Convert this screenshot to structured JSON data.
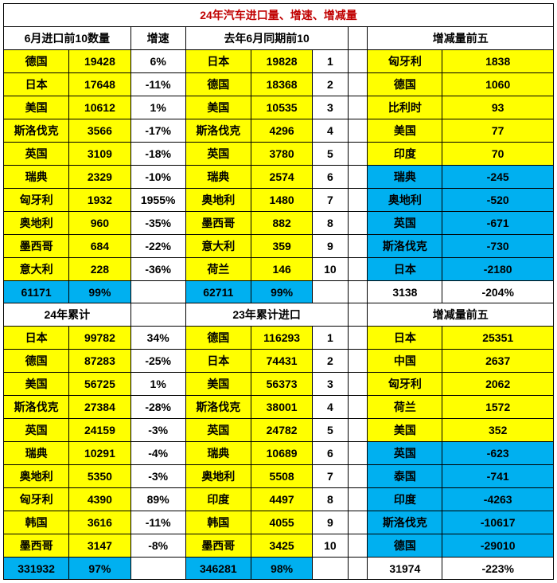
{
  "title": "24年汽车进口量、增速、增减量",
  "section1": {
    "header_left": "6月进口前10数量",
    "header_mid": "增速",
    "header_center": "去年6月同期前10",
    "header_right": "增减量前五",
    "left_rows": [
      {
        "country": "德国",
        "value": "19428",
        "rate": "6%"
      },
      {
        "country": "日本",
        "value": "17648",
        "rate": "-11%"
      },
      {
        "country": "美国",
        "value": "10612",
        "rate": "1%"
      },
      {
        "country": "斯洛伐克",
        "value": "3566",
        "rate": "-17%"
      },
      {
        "country": "英国",
        "value": "3109",
        "rate": "-18%"
      },
      {
        "country": "瑞典",
        "value": "2329",
        "rate": "-10%"
      },
      {
        "country": "匈牙利",
        "value": "1932",
        "rate": "1955%"
      },
      {
        "country": "奥地利",
        "value": "960",
        "rate": "-35%"
      },
      {
        "country": "墨西哥",
        "value": "684",
        "rate": "-22%"
      },
      {
        "country": "意大利",
        "value": "228",
        "rate": "-36%"
      }
    ],
    "center_rows": [
      {
        "country": "日本",
        "value": "19828",
        "rank": "1"
      },
      {
        "country": "德国",
        "value": "18368",
        "rank": "2"
      },
      {
        "country": "美国",
        "value": "10535",
        "rank": "3"
      },
      {
        "country": "斯洛伐克",
        "value": "4296",
        "rank": "4"
      },
      {
        "country": "英国",
        "value": "3780",
        "rank": "5"
      },
      {
        "country": "瑞典",
        "value": "2574",
        "rank": "6"
      },
      {
        "country": "奥地利",
        "value": "1480",
        "rank": "7"
      },
      {
        "country": "墨西哥",
        "value": "882",
        "rank": "8"
      },
      {
        "country": "意大利",
        "value": "359",
        "rank": "9"
      },
      {
        "country": "荷兰",
        "value": "146",
        "rank": "10"
      }
    ],
    "right_rows": [
      {
        "country": "匈牙利",
        "value": "1838",
        "neg": false
      },
      {
        "country": "德国",
        "value": "1060",
        "neg": false
      },
      {
        "country": "比利时",
        "value": "93",
        "neg": false
      },
      {
        "country": "美国",
        "value": "77",
        "neg": false
      },
      {
        "country": "印度",
        "value": "70",
        "neg": false
      },
      {
        "country": "瑞典",
        "value": "-245",
        "neg": true
      },
      {
        "country": "奥地利",
        "value": "-520",
        "neg": true
      },
      {
        "country": "英国",
        "value": "-671",
        "neg": true
      },
      {
        "country": "斯洛伐克",
        "value": "-730",
        "neg": true
      },
      {
        "country": "日本",
        "value": "-2180",
        "neg": true
      }
    ],
    "total": {
      "left_sum": "61171",
      "left_pct": "99%",
      "center_sum": "62711",
      "center_pct": "99%",
      "right_a": "3138",
      "right_b": "-204%"
    }
  },
  "section2": {
    "header_left": "24年累计",
    "header_center": "23年累计进口",
    "header_right": "增减量前五",
    "left_rows": [
      {
        "country": "日本",
        "value": "99782",
        "rate": "34%"
      },
      {
        "country": "德国",
        "value": "87283",
        "rate": "-25%"
      },
      {
        "country": "美国",
        "value": "56725",
        "rate": "1%"
      },
      {
        "country": "斯洛伐克",
        "value": "27384",
        "rate": "-28%"
      },
      {
        "country": "英国",
        "value": "24159",
        "rate": "-3%"
      },
      {
        "country": "瑞典",
        "value": "10291",
        "rate": "-4%"
      },
      {
        "country": "奥地利",
        "value": "5350",
        "rate": "-3%"
      },
      {
        "country": "匈牙利",
        "value": "4390",
        "rate": "89%"
      },
      {
        "country": "韩国",
        "value": "3616",
        "rate": "-11%"
      },
      {
        "country": "墨西哥",
        "value": "3147",
        "rate": "-8%"
      }
    ],
    "center_rows": [
      {
        "country": "德国",
        "value": "116293",
        "rank": "1"
      },
      {
        "country": "日本",
        "value": "74431",
        "rank": "2"
      },
      {
        "country": "美国",
        "value": "56373",
        "rank": "3"
      },
      {
        "country": "斯洛伐克",
        "value": "38001",
        "rank": "4"
      },
      {
        "country": "英国",
        "value": "24782",
        "rank": "5"
      },
      {
        "country": "瑞典",
        "value": "10689",
        "rank": "6"
      },
      {
        "country": "奥地利",
        "value": "5508",
        "rank": "7"
      },
      {
        "country": "印度",
        "value": "4497",
        "rank": "8"
      },
      {
        "country": "韩国",
        "value": "4055",
        "rank": "9"
      },
      {
        "country": "墨西哥",
        "value": "3425",
        "rank": "10"
      }
    ],
    "right_rows": [
      {
        "country": "日本",
        "value": "25351",
        "neg": false
      },
      {
        "country": "中国",
        "value": "2637",
        "neg": false
      },
      {
        "country": "匈牙利",
        "value": "2062",
        "neg": false
      },
      {
        "country": "荷兰",
        "value": "1572",
        "neg": false
      },
      {
        "country": "美国",
        "value": "352",
        "neg": false
      },
      {
        "country": "英国",
        "value": "-623",
        "neg": true
      },
      {
        "country": "泰国",
        "value": "-741",
        "neg": true
      },
      {
        "country": "印度",
        "value": "-4263",
        "neg": true
      },
      {
        "country": "斯洛伐克",
        "value": "-10617",
        "neg": true
      },
      {
        "country": "德国",
        "value": "-29010",
        "neg": true
      }
    ],
    "total": {
      "left_sum": "331932",
      "left_pct": "97%",
      "center_sum": "346281",
      "center_pct": "98%",
      "right_a": "31974",
      "right_b": "-223%"
    }
  },
  "colwidths": [
    "11.9%",
    "11.2%",
    "10%",
    "11.9%",
    "11.2%",
    "6.4%",
    "3.6%",
    "13.6%",
    "10.6%",
    "9.6%"
  ]
}
